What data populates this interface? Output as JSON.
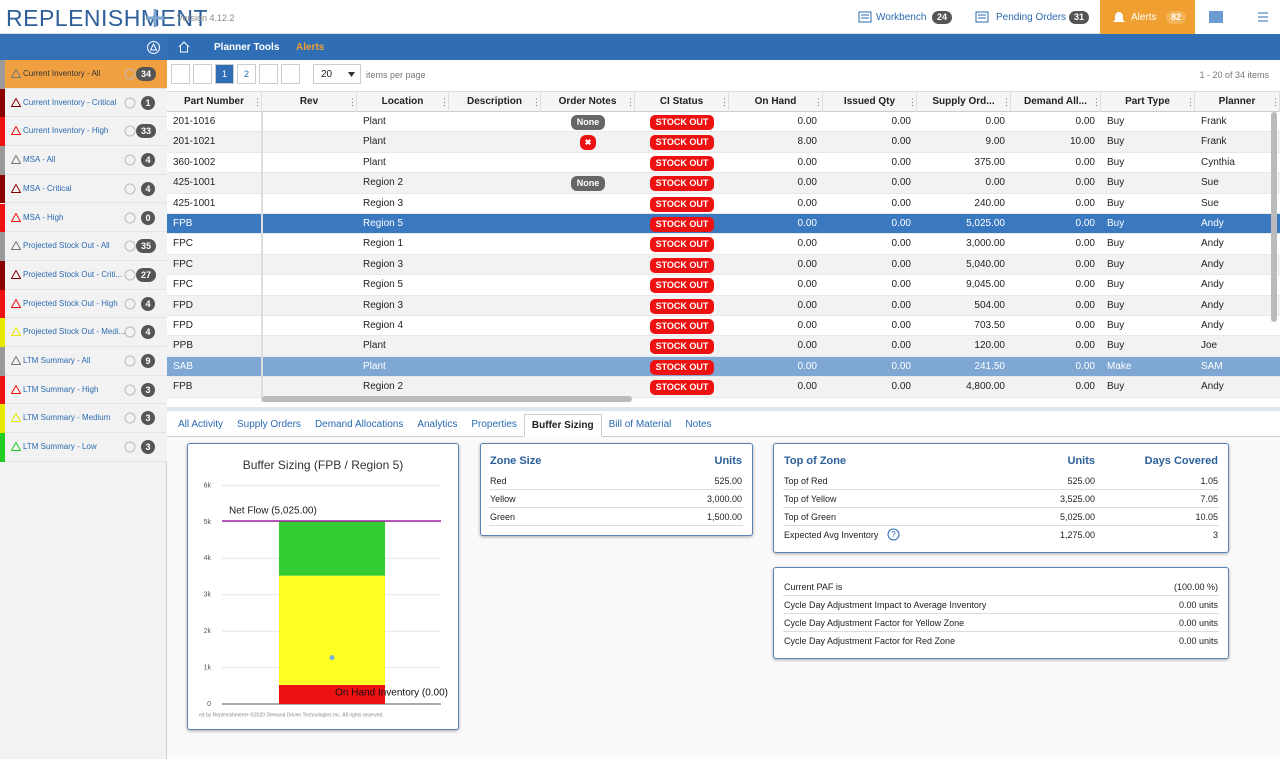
{
  "header": {
    "logo": "REPLENISHMENT",
    "version": "Version 4.12.2",
    "nav": [
      {
        "label": "Workbench",
        "count": "24"
      },
      {
        "label": "Pending Orders",
        "count": "31"
      },
      {
        "label": "Alerts",
        "count": "82"
      }
    ]
  },
  "breadcrumb": [
    "Planner Tools",
    "Alerts"
  ],
  "sidebar": [
    {
      "label": "Current Inventory - All",
      "count": "34",
      "color": "#9a9a9a"
    },
    {
      "label": "Current Inventory - Critical",
      "count": "1",
      "color": "#8b0000"
    },
    {
      "label": "Current Inventory - High",
      "count": "33",
      "color": "#ee1111"
    },
    {
      "label": "MSA - All",
      "count": "4",
      "color": "#9a9a9a"
    },
    {
      "label": "MSA - Critical",
      "count": "4",
      "color": "#8b0000"
    },
    {
      "label": "MSA - High",
      "count": "0",
      "color": "#ee1111"
    },
    {
      "label": "Projected Stock Out - All",
      "count": "35",
      "color": "#9a9a9a"
    },
    {
      "label": "Projected Stock Out - Criti...",
      "count": "27",
      "color": "#8b0000"
    },
    {
      "label": "Projected Stock Out - High",
      "count": "4",
      "color": "#ee1111"
    },
    {
      "label": "Projected Stock Out - Medi...",
      "count": "4",
      "color": "#e8e800"
    },
    {
      "label": "LTM Summary - All",
      "count": "9",
      "color": "#9a9a9a"
    },
    {
      "label": "LTM Summary - High",
      "count": "3",
      "color": "#ee1111"
    },
    {
      "label": "LTM Summary - Medium",
      "count": "3",
      "color": "#e8e800"
    },
    {
      "label": "LTM Summary - Low",
      "count": "3",
      "color": "#22cc22"
    }
  ],
  "pager": {
    "pages": [
      "1",
      "2"
    ],
    "per_page": "20",
    "per_page_label": "items per page",
    "summary": "1 - 20 of 34 items"
  },
  "table": {
    "columns": [
      "Part Number",
      "Rev",
      "Location",
      "Description",
      "Order Notes",
      "CI Status",
      "On Hand",
      "Issued Qty",
      "Supply Ord...",
      "Demand All...",
      "Part Type",
      "Planner"
    ],
    "selected_row": 5,
    "highlighted_row": 12,
    "rows": [
      {
        "part": "201-1016",
        "location": "Plant",
        "notes": "None",
        "status": "STOCK OUT",
        "on_hand": "0.00",
        "issued": "0.00",
        "supply": "0.00",
        "demand": "0.00",
        "type": "Buy",
        "planner": "Frank"
      },
      {
        "part": "201-1021",
        "location": "Plant",
        "notes": "✖",
        "status": "STOCK OUT",
        "on_hand": "8.00",
        "issued": "0.00",
        "supply": "9.00",
        "demand": "10.00",
        "type": "Buy",
        "planner": "Frank"
      },
      {
        "part": "360-1002",
        "location": "Plant",
        "status": "STOCK OUT",
        "on_hand": "0.00",
        "issued": "0.00",
        "supply": "375.00",
        "demand": "0.00",
        "type": "Buy",
        "planner": "Cynthia"
      },
      {
        "part": "425-1001",
        "location": "Region 2",
        "notes": "None",
        "status": "STOCK OUT",
        "on_hand": "0.00",
        "issued": "0.00",
        "supply": "0.00",
        "demand": "0.00",
        "type": "Buy",
        "planner": "Sue"
      },
      {
        "part": "425-1001",
        "location": "Region 3",
        "status": "STOCK OUT",
        "on_hand": "0.00",
        "issued": "0.00",
        "supply": "240.00",
        "demand": "0.00",
        "type": "Buy",
        "planner": "Sue"
      },
      {
        "part": "FPB",
        "location": "Region 5",
        "status": "STOCK OUT",
        "on_hand": "0.00",
        "issued": "0.00",
        "supply": "5,025.00",
        "demand": "0.00",
        "type": "Buy",
        "planner": "Andy"
      },
      {
        "part": "FPC",
        "location": "Region 1",
        "status": "STOCK OUT",
        "on_hand": "0.00",
        "issued": "0.00",
        "supply": "3,000.00",
        "demand": "0.00",
        "type": "Buy",
        "planner": "Andy"
      },
      {
        "part": "FPC",
        "location": "Region 3",
        "status": "STOCK OUT",
        "on_hand": "0.00",
        "issued": "0.00",
        "supply": "5,040.00",
        "demand": "0.00",
        "type": "Buy",
        "planner": "Andy"
      },
      {
        "part": "FPC",
        "location": "Region 5",
        "status": "STOCK OUT",
        "on_hand": "0.00",
        "issued": "0.00",
        "supply": "9,045.00",
        "demand": "0.00",
        "type": "Buy",
        "planner": "Andy"
      },
      {
        "part": "FPD",
        "location": "Region 3",
        "status": "STOCK OUT",
        "on_hand": "0.00",
        "issued": "0.00",
        "supply": "504.00",
        "demand": "0.00",
        "type": "Buy",
        "planner": "Andy"
      },
      {
        "part": "FPD",
        "location": "Region 4",
        "status": "STOCK OUT",
        "on_hand": "0.00",
        "issued": "0.00",
        "supply": "703.50",
        "demand": "0.00",
        "type": "Buy",
        "planner": "Andy"
      },
      {
        "part": "PPB",
        "location": "Plant",
        "status": "STOCK OUT",
        "on_hand": "0.00",
        "issued": "0.00",
        "supply": "120.00",
        "demand": "0.00",
        "type": "Buy",
        "planner": "Joe"
      },
      {
        "part": "SAB",
        "location": "Plant",
        "status": "STOCK OUT",
        "on_hand": "0.00",
        "issued": "0.00",
        "supply": "241.50",
        "demand": "0.00",
        "type": "Make",
        "planner": "SAM"
      },
      {
        "part": "FPB",
        "location": "Region 2",
        "status": "STOCK OUT",
        "on_hand": "0.00",
        "issued": "0.00",
        "supply": "4,800.00",
        "demand": "0.00",
        "type": "Buy",
        "planner": "Andy"
      }
    ]
  },
  "tabs": {
    "items": [
      "All Activity",
      "Supply Orders",
      "Demand Allocations",
      "Analytics",
      "Properties",
      "Buffer Sizing",
      "Bill of Material",
      "Notes"
    ],
    "active": 5
  },
  "chart_data": {
    "type": "stacked-bar",
    "title": "Buffer Sizing (FPB / Region 5)",
    "ylim": [
      0,
      6400
    ],
    "yticks": [
      0,
      {
        "value": 1000,
        "label": "1k"
      },
      {
        "value": 2000,
        "label": "2k"
      },
      {
        "value": 3000,
        "label": "3k"
      },
      {
        "value": 4000,
        "label": "4k"
      },
      {
        "value": 5000,
        "label": "5k"
      },
      {
        "value": 6000,
        "label": "6k"
      }
    ],
    "grid": true,
    "series": [
      {
        "color": "#ee1111",
        "values": [
          525
        ]
      },
      {
        "color": "#ffff22",
        "values": [
          3000
        ]
      },
      {
        "color": "#33cc33",
        "values": [
          1500
        ]
      }
    ],
    "net_flow": {
      "label": "Net Flow (5,025.00)",
      "value": 5025,
      "color": "#a020a0"
    },
    "on_hand": {
      "label": "On Hand Inventory (0.00)",
      "value": 0
    },
    "avg_marker": {
      "value": 1275,
      "color": "#7aaedc"
    },
    "footer": "ed by Replenishment+ ©2020 Demand Driven Technologies Inc. All rights reserved."
  },
  "zone_size": {
    "title": "Zone Size",
    "units": "Units",
    "rows": [
      [
        "Red",
        "525.00"
      ],
      [
        "Yellow",
        "3,000.00"
      ],
      [
        "Green",
        "1,500.00"
      ]
    ]
  },
  "top_of_zone": {
    "title": "Top of Zone",
    "units": "Units",
    "days": "Days Covered",
    "rows": [
      [
        "Top of Red",
        "525.00",
        "1.05"
      ],
      [
        "Top of Yellow",
        "3,525.00",
        "7.05"
      ],
      [
        "Top of Green",
        "5,025.00",
        "10.05"
      ],
      [
        "Expected Avg Inventory",
        "1,275.00",
        "3"
      ]
    ]
  },
  "paf": {
    "rows": [
      [
        "Current PAF is",
        "(100.00 %)"
      ],
      [
        "Cycle Day Adjustment Impact to Average Inventory",
        "0.00 units"
      ],
      [
        "Cycle Day Adjustment Factor for Yellow Zone",
        "0.00 units"
      ],
      [
        "Cycle Day Adjustment Factor for Red Zone",
        "0.00 units"
      ]
    ]
  }
}
